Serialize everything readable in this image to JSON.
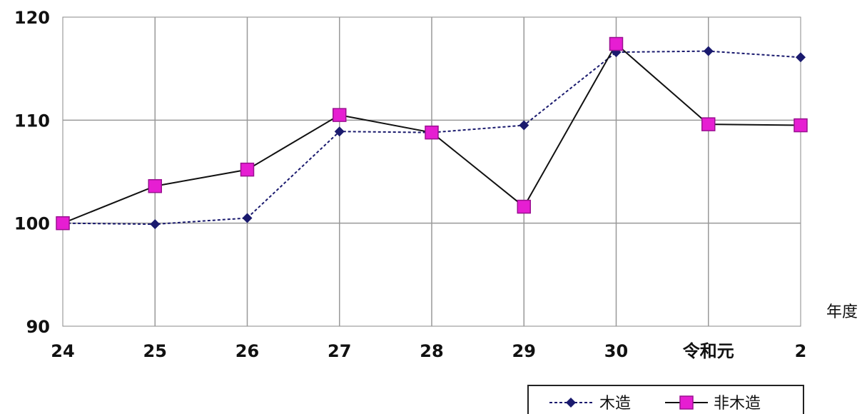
{
  "chart_data": {
    "type": "line",
    "title": "",
    "xlabel": "年度",
    "ylabel": "",
    "categories": [
      "24",
      "25",
      "26",
      "27",
      "28",
      "29",
      "30",
      "令和元",
      "2"
    ],
    "ylim": [
      90,
      120
    ],
    "yticks": [
      "90",
      "100",
      "110",
      "120"
    ],
    "grid": true,
    "legend_position": "bottom-right",
    "series": [
      {
        "name": "木造",
        "values": [
          100,
          99.9,
          100.5,
          108.9,
          108.8,
          109.5,
          116.6,
          116.7,
          116.1
        ],
        "color": "#1a1a6e",
        "line_style": "dashed",
        "marker": "diamond"
      },
      {
        "name": "非木造",
        "values": [
          100,
          103.6,
          105.2,
          110.5,
          108.8,
          101.6,
          117.4,
          109.6,
          109.5
        ],
        "color": "#e61ed2",
        "line_style": "solid",
        "marker": "square"
      }
    ]
  }
}
